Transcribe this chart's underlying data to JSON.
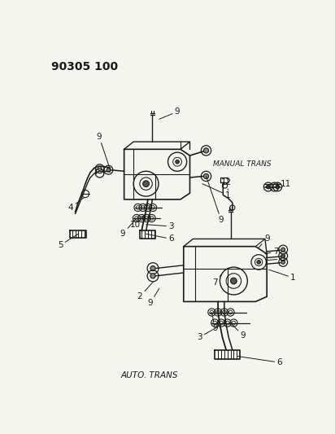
{
  "title": "90305 100",
  "bg_color": "#f5f5f0",
  "line_color": "#1a1a1a",
  "text_color": "#1a1a1a",
  "manual_trans_label": "MANUAL TRANS",
  "auto_trans_label": "AUTO. TRANS",
  "fig_width": 4.12,
  "fig_height": 5.33,
  "dpi": 100
}
